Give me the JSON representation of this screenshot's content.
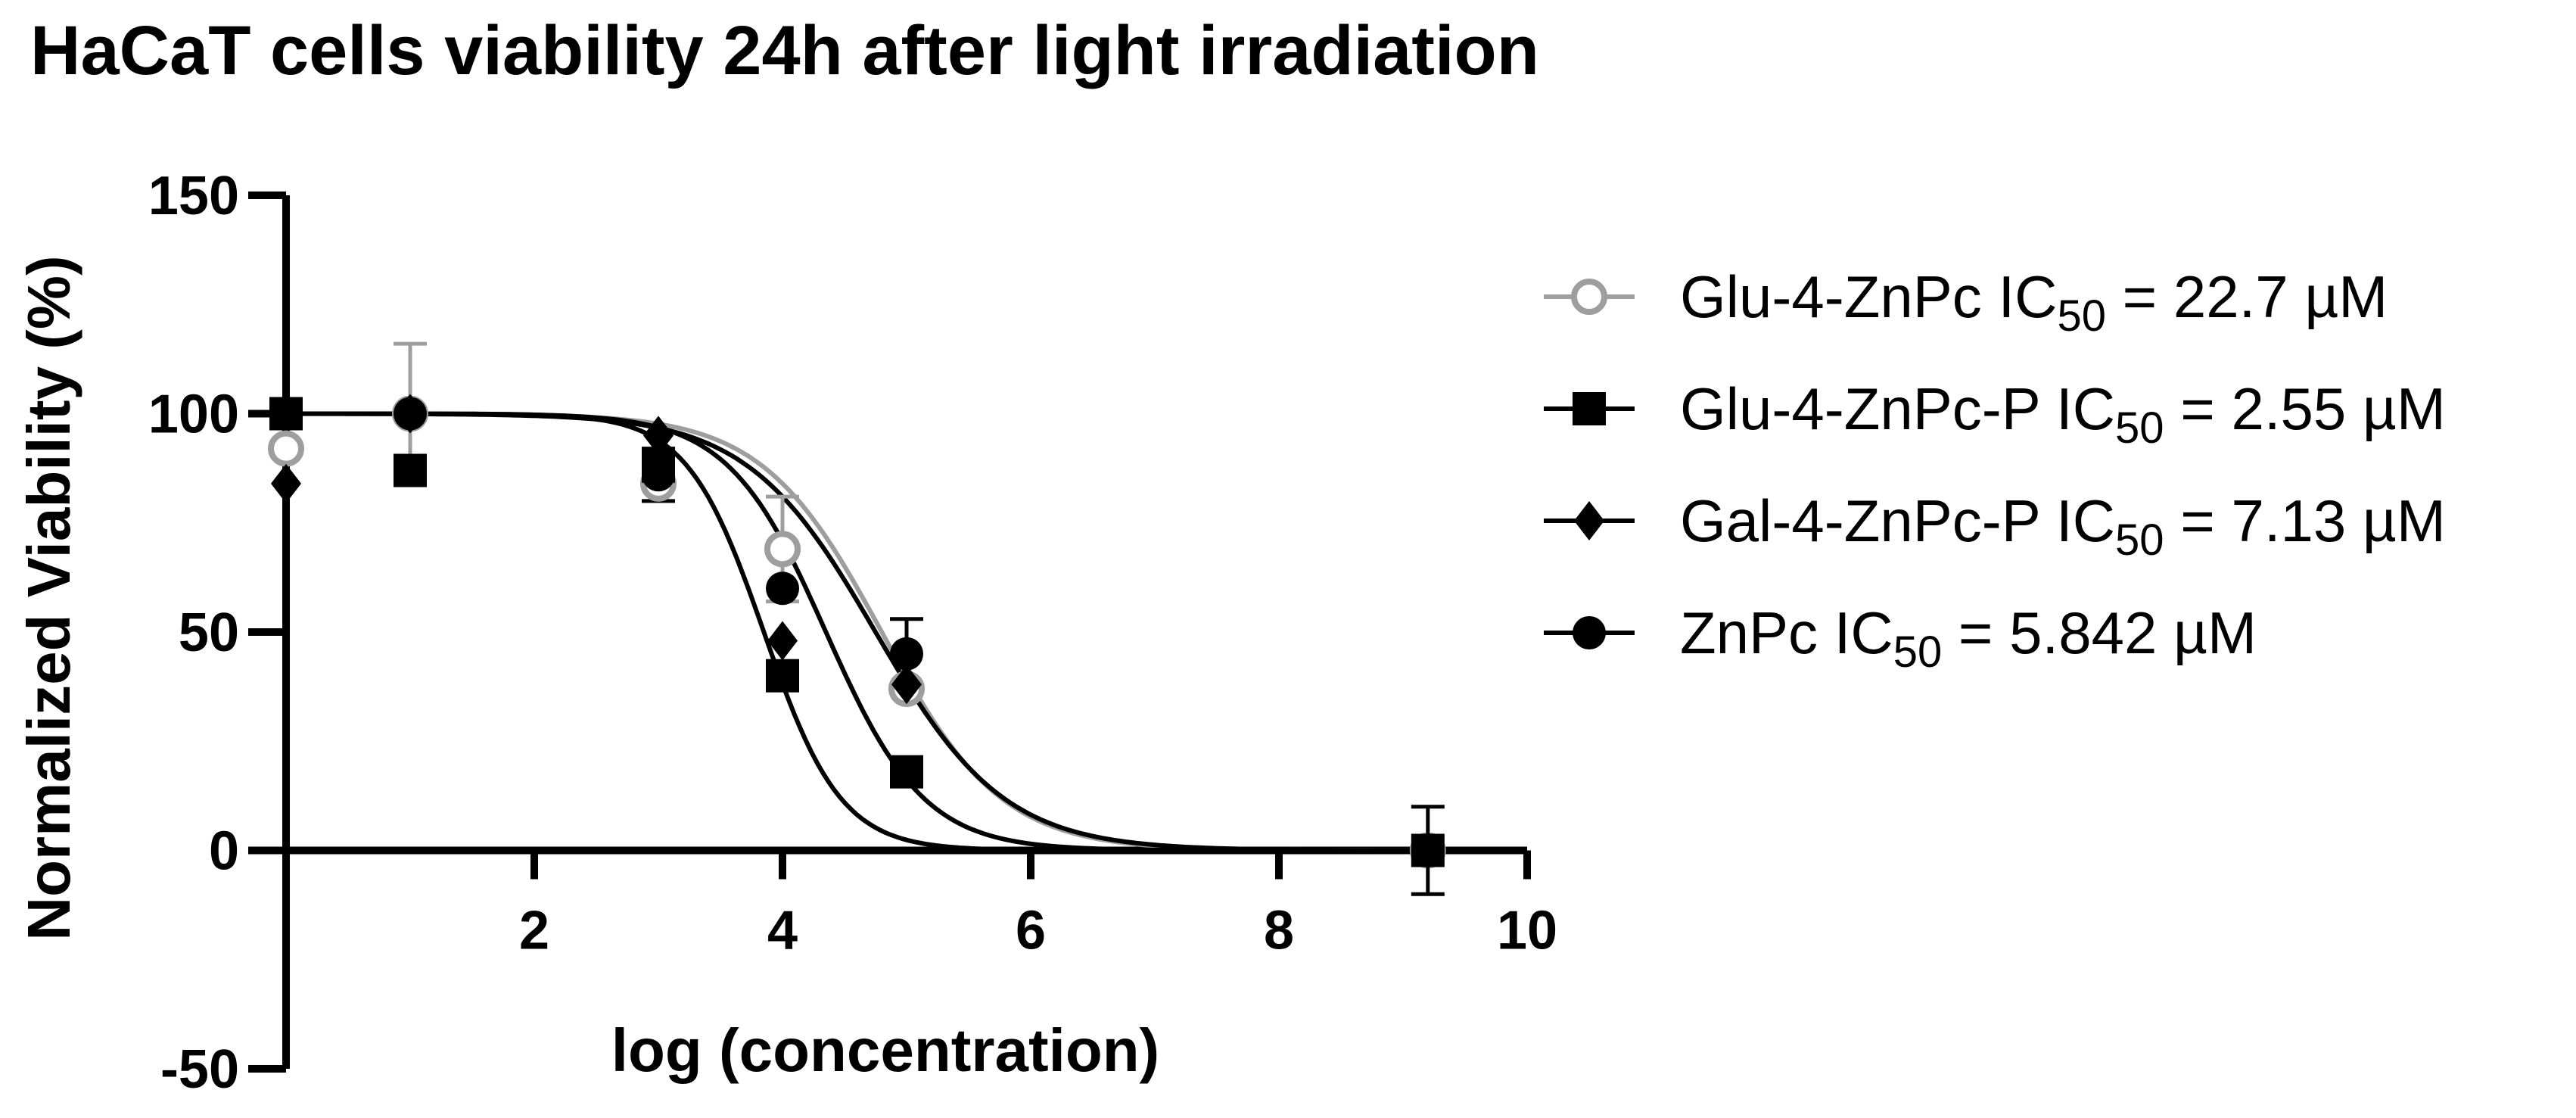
{
  "chart_data": {
    "type": "scatter",
    "title": "HaCaT cells viability 24h after light irradiation",
    "xlabel": "log (concentration)",
    "ylabel": "Normalized Viability (%)",
    "xlim": [
      0,
      10
    ],
    "ylim": [
      -50,
      150
    ],
    "x_ticks": [
      2,
      4,
      6,
      8,
      10
    ],
    "x_tick_labels": [
      "2",
      "4",
      "6",
      "8",
      "10"
    ],
    "y_ticks": [
      -50,
      0,
      50,
      100,
      150
    ],
    "y_tick_labels": [
      "-50",
      "0",
      "50",
      "100",
      "150"
    ],
    "grid": false,
    "legend_position": "right",
    "series": [
      {
        "name": "Glu-4-ZnPc",
        "ic50_prefix": "IC",
        "ic50_sub": "50",
        "ic50_suffix": " = 22.7 µM",
        "marker": "open-circle",
        "color": "#9e9e9e",
        "points": [
          {
            "x": 0,
            "y": 92,
            "err": 0
          },
          {
            "x": 1,
            "y": 100,
            "err": 16
          },
          {
            "x": 3,
            "y": 84,
            "err": 0
          },
          {
            "x": 4,
            "y": 69,
            "err": 12
          },
          {
            "x": 5,
            "y": 37,
            "err": 0
          },
          {
            "x": 9.2,
            "y": 0,
            "err": 0
          }
        ],
        "fit": {
          "top": 100,
          "bottom": 0,
          "log_ec50": 4.8,
          "hill": 0.45
        }
      },
      {
        "name": "Glu-4-ZnPc-P",
        "ic50_prefix": "IC",
        "ic50_sub": "50",
        "ic50_suffix": " = 2.55 µM",
        "marker": "square",
        "color": "#000000",
        "points": [
          {
            "x": 0,
            "y": 100,
            "err": 0
          },
          {
            "x": 1,
            "y": 87,
            "err": 0
          },
          {
            "x": 3,
            "y": 88,
            "err": 0
          },
          {
            "x": 4,
            "y": 40,
            "err": 0
          },
          {
            "x": 5,
            "y": 18,
            "err": 0
          },
          {
            "x": 9.2,
            "y": 0,
            "err": 10
          }
        ],
        "fit": {
          "top": 100,
          "bottom": 0,
          "log_ec50": 3.85,
          "hill": 0.7
        }
      },
      {
        "name": "Gal-4-ZnPc-P",
        "ic50_prefix": "IC",
        "ic50_sub": "50",
        "ic50_suffix": " = 7.13 µM",
        "marker": "diamond",
        "color": "#000000",
        "points": [
          {
            "x": 0,
            "y": 84,
            "err": 0
          },
          {
            "x": 1,
            "y": 100,
            "err": 0
          },
          {
            "x": 3,
            "y": 95,
            "err": 0
          },
          {
            "x": 4,
            "y": 48,
            "err": 0
          },
          {
            "x": 5,
            "y": 38,
            "err": 0
          },
          {
            "x": 9.2,
            "y": 0,
            "err": 0
          }
        ],
        "fit": {
          "top": 100,
          "bottom": 0,
          "log_ec50": 4.35,
          "hill": 0.55
        }
      },
      {
        "name": "ZnPc",
        "ic50_prefix": "IC",
        "ic50_sub": "50",
        "ic50_suffix": " = 5.842 µM",
        "marker": "filled-circle",
        "color": "#000000",
        "points": [
          {
            "x": 0,
            "y": 100,
            "err": 0
          },
          {
            "x": 1,
            "y": 100,
            "err": 0
          },
          {
            "x": 3,
            "y": 86,
            "err": 6
          },
          {
            "x": 4,
            "y": 60,
            "err": 0
          },
          {
            "x": 5,
            "y": 45,
            "err": 8
          },
          {
            "x": 9.2,
            "y": 0,
            "err": 0
          }
        ],
        "fit": {
          "top": 100,
          "bottom": 0,
          "log_ec50": 4.75,
          "hill": 0.42
        }
      }
    ]
  }
}
